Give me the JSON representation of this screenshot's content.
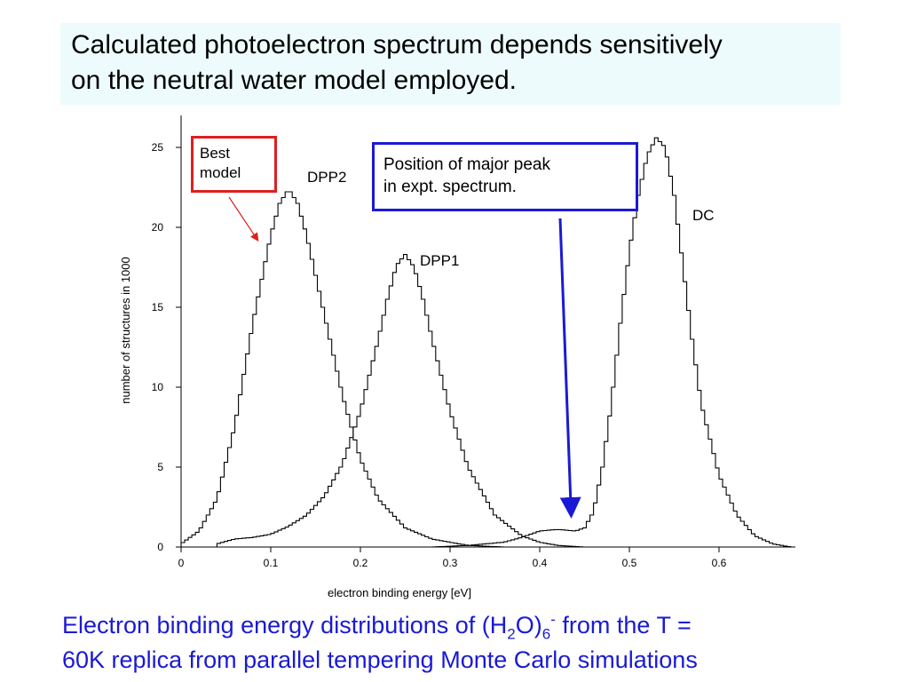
{
  "slide": {
    "title_line1": "Calculated photoelectron spectrum depends sensitively",
    "title_line2": "on the neutral water model employed.",
    "caption": {
      "part1": "Electron binding energy distributions of (H",
      "sub1": "2",
      "part2": "O)",
      "sub2": "6",
      "sup": "-",
      "part3": " from the T =",
      "line2": "60K replica from parallel tempering Monte Carlo simulations"
    }
  },
  "annotations": {
    "best_model_line1": "Best",
    "best_model_line2": "model",
    "expt_line1": "Position of major peak",
    "expt_line2": "in expt. spectrum.",
    "expt_peak_x": 0.435
  },
  "colors": {
    "title_bg": "#eefbfd",
    "caption_blue": "#1a1ad4",
    "red": "#dd1f1f",
    "blue": "#1a1ad4"
  },
  "chart_data": {
    "type": "line",
    "xlabel": "electron binding energy [eV]",
    "ylabel": "number of structures in 1000",
    "xlim": [
      0,
      0.68
    ],
    "ylim": [
      0,
      26
    ],
    "xticks": [
      0,
      0.1,
      0.2,
      0.3,
      0.4,
      0.5,
      0.6
    ],
    "xtick_labels": [
      "0",
      "0.1",
      "0.2",
      "0.3",
      "0.4",
      "0.5",
      "0.6"
    ],
    "yticks": [
      0,
      5,
      10,
      15,
      20,
      25
    ],
    "ytick_labels": [
      "0",
      "5",
      "10",
      "15",
      "20",
      "25"
    ],
    "grid": false,
    "series": [
      {
        "name": "DPP2",
        "x": [
          0.0,
          0.02,
          0.04,
          0.06,
          0.08,
          0.1,
          0.11,
          0.12,
          0.13,
          0.14,
          0.16,
          0.18,
          0.2,
          0.22,
          0.25,
          0.28,
          0.32,
          0.36,
          0.4
        ],
        "y": [
          0.2,
          1.0,
          3.0,
          7.6,
          14.0,
          19.5,
          21.5,
          22.4,
          21.5,
          19.5,
          14.5,
          9.5,
          5.5,
          3.0,
          1.2,
          0.5,
          0.1,
          0.0,
          0.0
        ]
      },
      {
        "name": "DPP1",
        "x": [
          0.04,
          0.06,
          0.08,
          0.1,
          0.12,
          0.14,
          0.16,
          0.18,
          0.2,
          0.22,
          0.23,
          0.24,
          0.25,
          0.26,
          0.27,
          0.28,
          0.3,
          0.32,
          0.35,
          0.38,
          0.4,
          0.42,
          0.45
        ],
        "y": [
          0.2,
          0.5,
          0.6,
          0.8,
          1.3,
          2.0,
          3.2,
          5.2,
          8.5,
          13.0,
          15.5,
          17.6,
          18.3,
          17.5,
          15.5,
          13.0,
          8.5,
          5.0,
          2.0,
          0.7,
          0.3,
          0.1,
          0.0
        ]
      },
      {
        "name": "DC",
        "x": [
          0.28,
          0.32,
          0.36,
          0.38,
          0.4,
          0.42,
          0.44,
          0.45,
          0.46,
          0.47,
          0.48,
          0.49,
          0.5,
          0.51,
          0.52,
          0.53,
          0.54,
          0.55,
          0.56,
          0.57,
          0.58,
          0.6,
          0.62,
          0.64,
          0.66,
          0.68
        ],
        "y": [
          0.0,
          0.1,
          0.3,
          0.6,
          1.0,
          1.1,
          1.0,
          1.2,
          2.2,
          5.0,
          9.0,
          14.0,
          18.5,
          22.0,
          24.5,
          25.6,
          25.0,
          22.0,
          17.5,
          13.0,
          9.0,
          4.5,
          2.0,
          0.7,
          0.2,
          0.0
        ]
      }
    ]
  }
}
